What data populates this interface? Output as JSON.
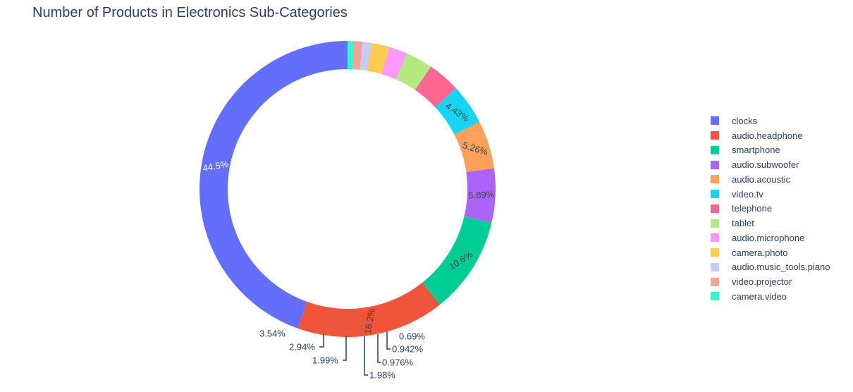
{
  "chart_data": {
    "type": "pie",
    "hole": true,
    "title": "Number of Products in Electronics Sub-Categories",
    "legend_position": "right",
    "slices": [
      {
        "label": "clocks",
        "percent_label": "44.5%",
        "percent": 44.5,
        "color": "#636efa",
        "text_placement": "inside",
        "text_color": "#ffffff"
      },
      {
        "label": "audio.headphone",
        "percent_label": "16.2%",
        "percent": 16.2,
        "color": "#ef553b",
        "text_placement": "inside",
        "text_color": "#444444"
      },
      {
        "label": "smartphone",
        "percent_label": "10.6%",
        "percent": 10.6,
        "color": "#00cc96",
        "text_placement": "inside",
        "text_color": "#444444"
      },
      {
        "label": "audio.subwoofer",
        "percent_label": "5.89%",
        "percent": 5.89,
        "color": "#ab63fa",
        "text_placement": "inside",
        "text_color": "#444444"
      },
      {
        "label": "audio.acoustic",
        "percent_label": "5.26%",
        "percent": 5.26,
        "color": "#ffa15a",
        "text_placement": "inside",
        "text_color": "#444444"
      },
      {
        "label": "video.tv",
        "percent_label": "4.43%",
        "percent": 4.43,
        "color": "#19d3f3",
        "text_placement": "inside",
        "text_color": "#444444"
      },
      {
        "label": "telephone",
        "percent_label": "3.54%",
        "percent": 3.54,
        "color": "#ff6692",
        "text_placement": "outside",
        "text_color": "#2a3f5f"
      },
      {
        "label": "tablet",
        "percent_label": "2.94%",
        "percent": 2.94,
        "color": "#b6e880",
        "text_placement": "outside",
        "text_color": "#2a3f5f"
      },
      {
        "label": "audio.microphone",
        "percent_label": "1.99%",
        "percent": 1.99,
        "color": "#ff97ff",
        "text_placement": "outside",
        "text_color": "#2a3f5f"
      },
      {
        "label": "camera.photo",
        "percent_label": "1.98%",
        "percent": 1.98,
        "color": "#fecb52",
        "text_placement": "outside",
        "text_color": "#2a3f5f"
      },
      {
        "label": "audio.music_tools.piano",
        "percent_label": "0.976%",
        "percent": 0.976,
        "color": "#c6cbf7",
        "text_placement": "outside",
        "text_color": "#2a3f5f"
      },
      {
        "label": "video.projector",
        "percent_label": "0.942%",
        "percent": 0.942,
        "color": "#f4a494",
        "text_placement": "outside",
        "text_color": "#2a3f5f"
      },
      {
        "label": "camera.video",
        "percent_label": "0.69%",
        "percent": 0.69,
        "color": "#35f7c7",
        "text_placement": "outside",
        "text_color": "#2a3f5f"
      }
    ]
  }
}
